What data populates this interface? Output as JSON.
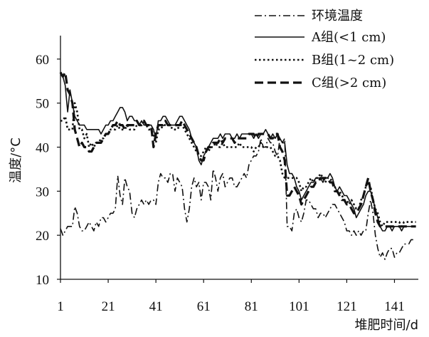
{
  "chart_data": {
    "type": "line",
    "xlabel": "堆肥时间/d",
    "ylabel": "温度/°C",
    "xlim": [
      1,
      151
    ],
    "ylim": [
      10,
      65
    ],
    "xticks": [
      1,
      21,
      41,
      61,
      81,
      101,
      121,
      141
    ],
    "yticks": [
      10,
      20,
      30,
      40,
      50,
      60
    ],
    "grid": false,
    "legend_position": "top-right",
    "series": [
      {
        "name": "环境温度",
        "style": "dash-dot",
        "color": "#111111",
        "x": [
          1,
          2,
          3,
          4,
          5,
          6,
          7,
          8,
          9,
          10,
          11,
          12,
          13,
          14,
          15,
          16,
          17,
          18,
          19,
          20,
          21,
          22,
          23,
          24,
          25,
          26,
          27,
          28,
          29,
          30,
          31,
          32,
          33,
          34,
          35,
          36,
          37,
          38,
          39,
          40,
          41,
          42,
          43,
          44,
          45,
          46,
          47,
          48,
          49,
          50,
          51,
          52,
          53,
          54,
          55,
          56,
          57,
          58,
          59,
          60,
          61,
          62,
          63,
          64,
          65,
          66,
          67,
          68,
          69,
          70,
          71,
          72,
          73,
          74,
          75,
          76,
          77,
          78,
          79,
          80,
          81,
          82,
          83,
          84,
          85,
          86,
          87,
          88,
          89,
          90,
          91,
          92,
          93,
          94,
          95,
          96,
          97,
          98,
          99,
          100,
          101,
          102,
          103,
          104,
          105,
          106,
          107,
          108,
          109,
          110,
          111,
          112,
          113,
          114,
          115,
          116,
          117,
          118,
          119,
          120,
          121,
          122,
          123,
          124,
          125,
          126,
          127,
          128,
          129,
          130,
          131,
          132,
          133,
          134,
          135,
          136,
          137,
          138,
          139,
          140,
          141,
          142,
          143,
          144,
          145,
          146,
          147,
          148,
          149,
          150
        ],
        "values": [
          21.5,
          20,
          21,
          22,
          22,
          22,
          26.5,
          25,
          22,
          21,
          21,
          22,
          23,
          22,
          21,
          23,
          22,
          24,
          24,
          23,
          24,
          25,
          25,
          26,
          33.5,
          29,
          27,
          33,
          31,
          30,
          25,
          24,
          26,
          27,
          28,
          27,
          28,
          27,
          28,
          28,
          27,
          32,
          34,
          33,
          33,
          32,
          34,
          34,
          30,
          33,
          32,
          31,
          26,
          23,
          26,
          31,
          33,
          31,
          32,
          28,
          32,
          32,
          31,
          28,
          35,
          33,
          30,
          33,
          34,
          31,
          32,
          33,
          33,
          31,
          31,
          32,
          33,
          34,
          33,
          36,
          37,
          38,
          38,
          39,
          42,
          40,
          40,
          42,
          41,
          41,
          39,
          38,
          42,
          41,
          42,
          22,
          22,
          21,
          25,
          26,
          24,
          23,
          25,
          28,
          28,
          27,
          26,
          26,
          24,
          25,
          25,
          24,
          25,
          26,
          27,
          27,
          26,
          25,
          24,
          23,
          21,
          21,
          20,
          21,
          20,
          21,
          20,
          21,
          21,
          25,
          28,
          25,
          20,
          17,
          15,
          16,
          14.5,
          16,
          17,
          17,
          15,
          16,
          16,
          17,
          18,
          18,
          18,
          19,
          19,
          19
        ]
      },
      {
        "name": "A组(<1 cm)",
        "style": "solid",
        "color": "#111111",
        "x": [
          1,
          2,
          3,
          4,
          5,
          6,
          7,
          8,
          9,
          10,
          11,
          12,
          13,
          14,
          15,
          16,
          17,
          18,
          19,
          20,
          21,
          22,
          23,
          24,
          25,
          26,
          27,
          28,
          29,
          30,
          31,
          32,
          33,
          34,
          35,
          36,
          37,
          38,
          39,
          40,
          41,
          42,
          43,
          44,
          45,
          46,
          47,
          48,
          49,
          50,
          51,
          52,
          53,
          54,
          55,
          56,
          57,
          58,
          59,
          60,
          61,
          62,
          63,
          64,
          65,
          66,
          67,
          68,
          69,
          70,
          71,
          72,
          73,
          74,
          75,
          76,
          77,
          78,
          79,
          80,
          81,
          82,
          83,
          84,
          85,
          86,
          87,
          88,
          89,
          90,
          91,
          92,
          93,
          94,
          95,
          96,
          97,
          98,
          99,
          100,
          101,
          102,
          103,
          104,
          105,
          106,
          107,
          108,
          109,
          110,
          111,
          112,
          113,
          114,
          115,
          116,
          117,
          118,
          119,
          120,
          121,
          122,
          123,
          124,
          125,
          126,
          127,
          128,
          129,
          130,
          131,
          132,
          133,
          134,
          135,
          136,
          137,
          138,
          139,
          140,
          141,
          142,
          143,
          144,
          145,
          146,
          147,
          148,
          149,
          150
        ],
        "values": [
          56.5,
          56,
          54,
          48,
          53,
          50,
          47,
          46,
          45,
          45,
          45,
          44,
          44,
          44,
          44,
          44,
          44,
          43,
          44,
          45,
          45,
          46,
          46,
          47,
          48,
          49,
          49,
          48,
          46,
          47,
          47,
          46,
          46,
          45,
          46,
          45,
          45,
          45,
          45,
          44,
          42,
          46,
          46,
          47,
          47,
          46,
          45,
          45,
          45,
          46,
          47,
          47,
          46,
          45,
          44,
          42,
          41,
          40,
          37,
          36,
          38,
          39,
          40,
          41,
          42,
          42,
          42,
          43,
          42,
          43,
          43,
          43,
          42,
          42,
          43,
          42,
          43,
          43,
          43,
          43,
          43,
          42,
          43,
          42,
          43,
          43,
          44,
          43,
          42,
          43,
          42,
          43,
          42,
          41,
          41,
          36,
          34,
          34,
          33,
          31,
          30,
          28,
          29,
          30,
          31,
          32,
          32,
          33,
          33,
          33,
          32,
          33,
          33,
          34,
          33,
          31,
          30,
          31,
          30,
          29,
          29,
          28,
          27,
          26,
          24,
          25,
          26,
          27,
          29,
          30,
          30,
          28,
          26,
          24,
          22,
          21,
          21,
          22,
          22,
          21,
          22,
          22,
          22,
          21,
          22,
          22,
          22,
          22,
          22,
          22
        ]
      },
      {
        "name": "B组(1~2 cm)",
        "style": "dotted",
        "color": "#111111",
        "x": [
          1,
          2,
          3,
          4,
          5,
          6,
          7,
          8,
          9,
          10,
          11,
          12,
          13,
          14,
          15,
          16,
          17,
          18,
          19,
          20,
          21,
          22,
          23,
          24,
          25,
          26,
          27,
          28,
          29,
          30,
          31,
          32,
          33,
          34,
          35,
          36,
          37,
          38,
          39,
          40,
          41,
          42,
          43,
          44,
          45,
          46,
          47,
          48,
          49,
          50,
          51,
          52,
          53,
          54,
          55,
          56,
          57,
          58,
          59,
          60,
          61,
          62,
          63,
          64,
          65,
          66,
          67,
          68,
          69,
          70,
          71,
          72,
          73,
          74,
          75,
          76,
          77,
          78,
          79,
          80,
          81,
          82,
          83,
          84,
          85,
          86,
          87,
          88,
          89,
          90,
          91,
          92,
          93,
          94,
          95,
          96,
          97,
          98,
          99,
          100,
          101,
          102,
          103,
          104,
          105,
          106,
          107,
          108,
          109,
          110,
          111,
          112,
          113,
          114,
          115,
          116,
          117,
          118,
          119,
          120,
          121,
          122,
          123,
          124,
          125,
          126,
          127,
          128,
          129,
          130,
          131,
          132,
          133,
          134,
          135,
          136,
          137,
          138,
          139,
          140,
          141,
          142,
          143,
          144,
          145,
          146,
          147,
          148,
          149,
          150
        ],
        "values": [
          46,
          46,
          47,
          44,
          44,
          44,
          50,
          48,
          44,
          44,
          42,
          43,
          40,
          41,
          40,
          41,
          41,
          42,
          42,
          43,
          43,
          44,
          44,
          44,
          45,
          44,
          44,
          44,
          45,
          44,
          44,
          44,
          45,
          45,
          45,
          46,
          45,
          44,
          44,
          43,
          41,
          44,
          44,
          45,
          45,
          45,
          45,
          44,
          44,
          44,
          45,
          45,
          44,
          43,
          42,
          41,
          40,
          39,
          38,
          38,
          39,
          40,
          39,
          40,
          40,
          41,
          40,
          40,
          41,
          40,
          40,
          40,
          40,
          40,
          40,
          41,
          40,
          40,
          40,
          40,
          40,
          39,
          40,
          40,
          41,
          40,
          40,
          40,
          40,
          39,
          38,
          38,
          37,
          34,
          33,
          33,
          33,
          33,
          33,
          33,
          32,
          30,
          31,
          31,
          32,
          33,
          32,
          33,
          33,
          34,
          33,
          32,
          33,
          33,
          32,
          31,
          30,
          30,
          29,
          28,
          28,
          27,
          28,
          27,
          26,
          26,
          28,
          29,
          31,
          32,
          31,
          28,
          26,
          25,
          23,
          22,
          23,
          23,
          23,
          23,
          23,
          23,
          23,
          22,
          23,
          23,
          23,
          23,
          23,
          23
        ]
      },
      {
        "name": "C组(>2 cm)",
        "style": "dashed",
        "color": "#111111",
        "x": [
          1,
          2,
          3,
          4,
          5,
          6,
          7,
          8,
          9,
          10,
          11,
          12,
          13,
          14,
          15,
          16,
          17,
          18,
          19,
          20,
          21,
          22,
          23,
          24,
          25,
          26,
          27,
          28,
          29,
          30,
          31,
          32,
          33,
          34,
          35,
          36,
          37,
          38,
          39,
          40,
          41,
          42,
          43,
          44,
          45,
          46,
          47,
          48,
          49,
          50,
          51,
          52,
          53,
          54,
          55,
          56,
          57,
          58,
          59,
          60,
          61,
          62,
          63,
          64,
          65,
          66,
          67,
          68,
          69,
          70,
          71,
          72,
          73,
          74,
          75,
          76,
          77,
          78,
          79,
          80,
          81,
          82,
          83,
          84,
          85,
          86,
          87,
          88,
          89,
          90,
          91,
          92,
          93,
          94,
          95,
          96,
          97,
          98,
          99,
          100,
          101,
          102,
          103,
          104,
          105,
          106,
          107,
          108,
          109,
          110,
          111,
          112,
          113,
          114,
          115,
          116,
          117,
          118,
          119,
          120,
          121,
          122,
          123,
          124,
          125,
          126,
          127,
          128,
          129,
          130,
          131,
          132,
          133,
          134,
          135,
          136,
          137,
          138,
          139,
          140,
          141,
          142,
          143,
          144,
          145,
          146,
          147,
          148,
          149,
          150
        ],
        "values": [
          57,
          56,
          57,
          53,
          52,
          50,
          44,
          42,
          40,
          41,
          40,
          40,
          39,
          39,
          40,
          41,
          41,
          41,
          42,
          43,
          43,
          44,
          45,
          45,
          46,
          45,
          45,
          44,
          45,
          45,
          45,
          45,
          46,
          45,
          45,
          46,
          45,
          45,
          45,
          40,
          43,
          45,
          45,
          45,
          46,
          45,
          45,
          45,
          45,
          45,
          45,
          46,
          45,
          44,
          43,
          42,
          41,
          40,
          38,
          37,
          37,
          39,
          40,
          40,
          41,
          41,
          41,
          42,
          41,
          42,
          42,
          42,
          42,
          41,
          42,
          42,
          42,
          42,
          42,
          43,
          43,
          43,
          42,
          43,
          43,
          43,
          43,
          43,
          42,
          42,
          43,
          43,
          40,
          39,
          37,
          29,
          29,
          30,
          31,
          30,
          29,
          27,
          28,
          29,
          30,
          31,
          31,
          32,
          32,
          33,
          33,
          33,
          33,
          32,
          32,
          30,
          30,
          29,
          28,
          28,
          27,
          27,
          26,
          25,
          25,
          26,
          27,
          29,
          31,
          33,
          30,
          28,
          25,
          23,
          22,
          22,
          22,
          22,
          22,
          22,
          22,
          22,
          22,
          22,
          22,
          22,
          22,
          22,
          22,
          22
        ]
      }
    ]
  }
}
